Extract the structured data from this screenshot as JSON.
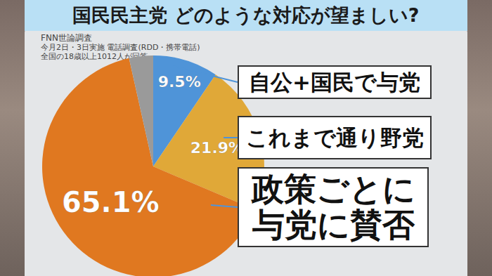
{
  "chart_data": {
    "type": "pie",
    "title": "国民民主党 どのような対応が望ましい?",
    "subtitle": "FNN世論調査",
    "annotations": [
      "今月2日・3日実施 電話調査(RDD・携帯電話)",
      "全国の18歳以上1012人が回答"
    ],
    "categories": [
      "自公+国民で与党",
      "これまで通り野党",
      "政策ごとに与党に賛否",
      null
    ],
    "values": [
      9.5,
      21.9,
      65.1,
      3.5
    ],
    "colors": [
      "#4f94d8",
      "#e0a838",
      "#e07820",
      "#9a9a9a"
    ],
    "data_labels": true,
    "value_labels": [
      "9.5%",
      "21.9%",
      "65.1%",
      null
    ]
  }
}
